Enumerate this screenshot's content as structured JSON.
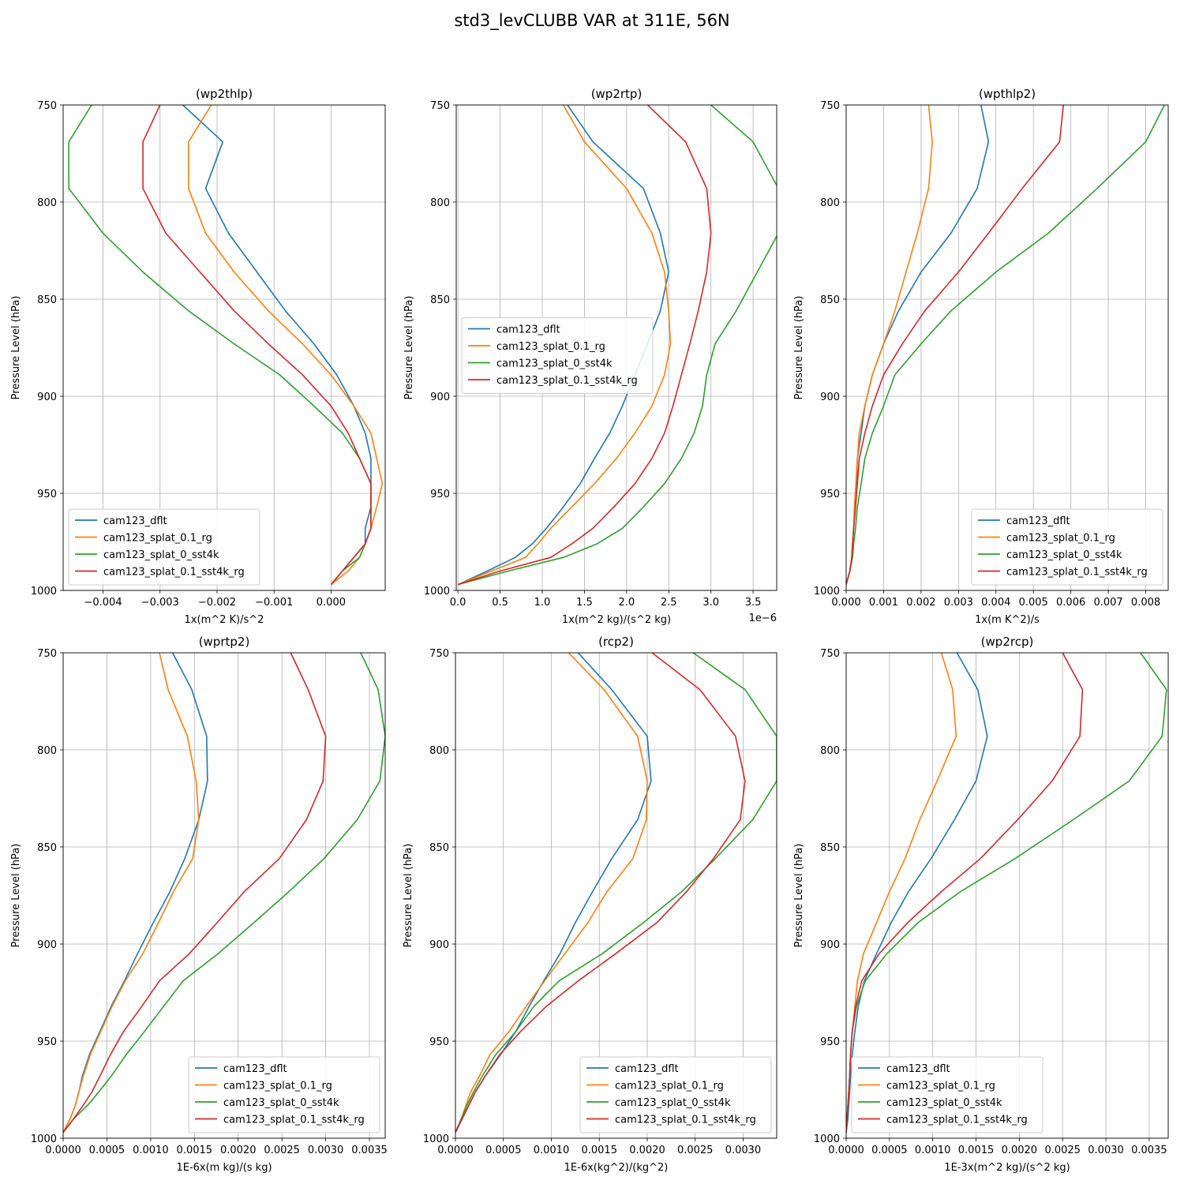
{
  "figure_title": "std3_levCLUBB VAR at 311E, 56N",
  "colors": {
    "cam123_dflt": "#1f77b4",
    "cam123_splat_0.1_rg": "#ff7f0e",
    "cam123_splat_0_sst4k": "#2ca02c",
    "cam123_splat_0.1_sst4k_rg": "#d62728",
    "grid": "#b0b0b0"
  },
  "chart_data": [
    {
      "type": "line",
      "title": "(wp2thlp)",
      "xlabel": "1x(m^2 K)/s^2",
      "ylabel": "Pressure Level (hPa)",
      "xlim": [
        -0.0047,
        0.00095
      ],
      "ylim": [
        1000,
        750
      ],
      "grid": true,
      "legend": "lower-left",
      "xticks": [
        -0.004,
        -0.003,
        -0.002,
        -0.001,
        0.0
      ],
      "xtick_labels": [
        "−0.004",
        "−0.003",
        "−0.002",
        "−0.001",
        "0.000"
      ],
      "yticks": [
        750,
        800,
        850,
        900,
        950,
        1000
      ],
      "ytick_labels": [
        "750",
        "800",
        "850",
        "900",
        "950",
        "1000"
      ],
      "levels": [
        750,
        769,
        793,
        816,
        836,
        856,
        873,
        889,
        905,
        919,
        932,
        945,
        957,
        968,
        976,
        983,
        990,
        997
      ],
      "series": [
        {
          "name": "cam123_dflt",
          "values": [
            -0.0026,
            -0.0019,
            -0.0022,
            -0.0018,
            -0.0013,
            -0.0008,
            -0.0003,
            0.0001,
            0.0004,
            0.0006,
            0.0007,
            0.0007,
            0.0007,
            0.0006,
            0.0006,
            0.0004,
            0.0002,
            0.0
          ]
        },
        {
          "name": "cam123_splat_0.1_rg",
          "values": [
            -0.0021,
            -0.0025,
            -0.0025,
            -0.0022,
            -0.0017,
            -0.0011,
            -0.0005,
            0.0,
            0.0004,
            0.0007,
            0.0008,
            0.0009,
            0.0008,
            0.0007,
            0.0006,
            0.0005,
            0.0003,
            0.0
          ]
        },
        {
          "name": "cam123_splat_0_sst4k",
          "values": [
            -0.0042,
            -0.0046,
            -0.0046,
            -0.004,
            -0.0033,
            -0.0025,
            -0.0017,
            -0.0009,
            -0.0003,
            0.0002,
            0.0005,
            0.0007,
            0.0007,
            0.0007,
            0.0006,
            0.0005,
            0.0002,
            0.0
          ]
        },
        {
          "name": "cam123_splat_0.1_sst4k_rg",
          "values": [
            -0.003,
            -0.0033,
            -0.0033,
            -0.0029,
            -0.0023,
            -0.0017,
            -0.0011,
            -0.0005,
            0.0,
            0.0003,
            0.0005,
            0.0007,
            0.0007,
            0.0007,
            0.0006,
            0.0004,
            0.0002,
            0.0
          ]
        }
      ]
    },
    {
      "type": "line",
      "title": "(wp2rtp)",
      "xlabel": "1x(m^2 kg)/(s^2 kg)",
      "ylabel": "Pressure Level (hPa)",
      "offset_text": "1e−6",
      "xlim": [
        -0.02,
        3.78
      ],
      "ylim": [
        1000,
        750
      ],
      "grid": true,
      "legend": "center-left",
      "xticks": [
        0.0,
        0.5,
        1.0,
        1.5,
        2.0,
        2.5,
        3.0,
        3.5
      ],
      "xtick_labels": [
        "0.0",
        "0.5",
        "1.0",
        "1.5",
        "2.0",
        "2.5",
        "3.0",
        "3.5"
      ],
      "yticks": [
        750,
        800,
        850,
        900,
        950,
        1000
      ],
      "ytick_labels": [
        "750",
        "800",
        "850",
        "900",
        "950",
        "1000"
      ],
      "levels": [
        750,
        769,
        793,
        816,
        836,
        856,
        873,
        889,
        905,
        919,
        932,
        945,
        957,
        968,
        976,
        983,
        990,
        997
      ],
      "series": [
        {
          "name": "cam123_dflt",
          "values": [
            1.3,
            1.6,
            2.2,
            2.4,
            2.5,
            2.4,
            2.25,
            2.1,
            1.95,
            1.8,
            1.62,
            1.45,
            1.25,
            1.05,
            0.88,
            0.68,
            0.35,
            0.0
          ]
        },
        {
          "name": "cam123_splat_0.1_rg",
          "values": [
            1.25,
            1.5,
            2.0,
            2.3,
            2.45,
            2.5,
            2.52,
            2.45,
            2.3,
            2.1,
            1.88,
            1.62,
            1.35,
            1.1,
            0.95,
            0.8,
            0.4,
            0.0
          ]
        },
        {
          "name": "cam123_splat_0_sst4k",
          "values": [
            3.0,
            3.5,
            3.8,
            3.8,
            3.55,
            3.3,
            3.05,
            2.95,
            2.9,
            2.8,
            2.65,
            2.45,
            2.2,
            1.95,
            1.65,
            1.25,
            0.6,
            0.0
          ]
        },
        {
          "name": "cam123_splat_0.1_sst4k_rg",
          "values": [
            2.25,
            2.7,
            2.95,
            3.0,
            2.95,
            2.85,
            2.75,
            2.65,
            2.55,
            2.45,
            2.3,
            2.1,
            1.85,
            1.6,
            1.35,
            1.1,
            0.5,
            0.0
          ]
        }
      ]
    },
    {
      "type": "line",
      "title": "(wpthlp2)",
      "xlabel": "1x(m K^2)/s",
      "ylabel": "Pressure Level (hPa)",
      "xlim": [
        0.0,
        0.0086
      ],
      "ylim": [
        1000,
        750
      ],
      "grid": true,
      "legend": "lower-right",
      "xticks": [
        0.0,
        0.001,
        0.002,
        0.003,
        0.004,
        0.005,
        0.006,
        0.007,
        0.008
      ],
      "xtick_labels": [
        "0.000",
        "0.001",
        "0.002",
        "0.003",
        "0.004",
        "0.005",
        "0.006",
        "0.007",
        "0.008"
      ],
      "yticks": [
        750,
        800,
        850,
        900,
        950,
        1000
      ],
      "ytick_labels": [
        "750",
        "800",
        "850",
        "900",
        "950",
        "1000"
      ],
      "levels": [
        750,
        769,
        793,
        816,
        836,
        856,
        873,
        889,
        905,
        919,
        932,
        945,
        957,
        968,
        976,
        983,
        990,
        997
      ],
      "series": [
        {
          "name": "cam123_dflt",
          "values": [
            0.0036,
            0.0038,
            0.0035,
            0.0028,
            0.002,
            0.0014,
            0.001,
            0.0007,
            0.0005,
            0.0004,
            0.0003,
            0.00028,
            0.00024,
            0.0002,
            0.00017,
            0.00015,
            0.0001,
            0.0
          ]
        },
        {
          "name": "cam123_splat_0.1_rg",
          "values": [
            0.0022,
            0.0023,
            0.0022,
            0.0019,
            0.0016,
            0.0013,
            0.001,
            0.0007,
            0.0005,
            0.00035,
            0.0003,
            0.00026,
            0.00022,
            0.0002,
            0.00017,
            0.00015,
            0.0001,
            0.0
          ]
        },
        {
          "name": "cam123_splat_0_sst4k",
          "values": [
            0.0085,
            0.008,
            0.0067,
            0.0054,
            0.004,
            0.0028,
            0.002,
            0.0013,
            0.001,
            0.0007,
            0.0005,
            0.0004,
            0.0003,
            0.00025,
            0.0002,
            0.00017,
            0.0001,
            0.0
          ]
        },
        {
          "name": "cam123_splat_0.1_sst4k_rg",
          "values": [
            0.0058,
            0.0057,
            0.0047,
            0.0038,
            0.003,
            0.0021,
            0.0015,
            0.001,
            0.0007,
            0.0005,
            0.00035,
            0.0003,
            0.00025,
            0.0002,
            0.00017,
            0.00015,
            0.0001,
            0.0
          ]
        }
      ]
    },
    {
      "type": "line",
      "title": "(wprtp2)",
      "xlabel": "1E-6x(m kg)/(s kg)",
      "ylabel": "Pressure Level (hPa)",
      "xlim": [
        0.0,
        0.00368
      ],
      "ylim": [
        1000,
        750
      ],
      "grid": true,
      "legend": "lower-right",
      "xticks": [
        0.0,
        0.0005,
        0.001,
        0.0015,
        0.002,
        0.0025,
        0.003,
        0.0035
      ],
      "xtick_labels": [
        "0.0000",
        "0.0005",
        "0.0010",
        "0.0015",
        "0.0020",
        "0.0025",
        "0.0030",
        "0.0035"
      ],
      "yticks": [
        750,
        800,
        850,
        900,
        950,
        1000
      ],
      "ytick_labels": [
        "750",
        "800",
        "850",
        "900",
        "950",
        "1000"
      ],
      "levels": [
        750,
        769,
        793,
        816,
        836,
        856,
        873,
        889,
        905,
        919,
        932,
        945,
        957,
        968,
        976,
        983,
        990,
        997
      ],
      "series": [
        {
          "name": "cam123_dflt",
          "values": [
            0.00125,
            0.00147,
            0.00164,
            0.00165,
            0.00155,
            0.00139,
            0.00122,
            0.00103,
            0.00085,
            0.0007,
            0.00055,
            0.00042,
            0.0003,
            0.00022,
            0.00018,
            0.00014,
            8e-05,
            0.0
          ]
        },
        {
          "name": "cam123_splat_0.1_rg",
          "values": [
            0.0011,
            0.0012,
            0.00142,
            0.00152,
            0.00155,
            0.00148,
            0.00126,
            0.00109,
            0.00091,
            0.00071,
            0.00056,
            0.00043,
            0.00031,
            0.00023,
            0.00018,
            0.00014,
            8e-05,
            0.0
          ]
        },
        {
          "name": "cam123_splat_0_sst4k",
          "values": [
            0.0034,
            0.0036,
            0.00368,
            0.00362,
            0.00336,
            0.00298,
            0.00258,
            0.00218,
            0.00177,
            0.00137,
            0.00115,
            0.00093,
            0.00072,
            0.00055,
            0.00041,
            0.00028,
            0.00012,
            0.0
          ]
        },
        {
          "name": "cam123_splat_0.1_sst4k_rg",
          "values": [
            0.0026,
            0.0028,
            0.003,
            0.00297,
            0.00278,
            0.00247,
            0.00207,
            0.00176,
            0.00144,
            0.0011,
            0.0009,
            0.00069,
            0.00054,
            0.00042,
            0.00033,
            0.00023,
            0.00012,
            0.0
          ]
        }
      ]
    },
    {
      "type": "line",
      "title": "(rcp2)",
      "xlabel": "1E-6x(kg^2)/(kg^2)",
      "ylabel": "Pressure Level (hPa)",
      "xlim": [
        0.0,
        0.00335
      ],
      "ylim": [
        1000,
        750
      ],
      "grid": true,
      "legend": "lower-right",
      "xticks": [
        0.0,
        0.0005,
        0.001,
        0.0015,
        0.002,
        0.0025,
        0.003
      ],
      "xtick_labels": [
        "0.0000",
        "0.0005",
        "0.0010",
        "0.0015",
        "0.0020",
        "0.0025",
        "0.0030"
      ],
      "yticks": [
        750,
        800,
        850,
        900,
        950,
        1000
      ],
      "ytick_labels": [
        "750",
        "800",
        "850",
        "900",
        "950",
        "1000"
      ],
      "levels": [
        750,
        769,
        793,
        816,
        836,
        856,
        873,
        889,
        905,
        919,
        932,
        945,
        957,
        968,
        976,
        983,
        990,
        997
      ],
      "series": [
        {
          "name": "cam123_dflt",
          "values": [
            0.00128,
            0.00163,
            0.002,
            0.00204,
            0.0019,
            0.00163,
            0.00143,
            0.00125,
            0.00109,
            0.00092,
            0.00077,
            0.00063,
            0.00047,
            0.00031,
            0.00021,
            0.00014,
            7e-05,
            0.0
          ]
        },
        {
          "name": "cam123_splat_0.1_rg",
          "values": [
            0.00118,
            0.00155,
            0.0019,
            0.002,
            0.00199,
            0.00185,
            0.00158,
            0.00138,
            0.00114,
            0.00093,
            0.00074,
            0.00056,
            0.00036,
            0.00025,
            0.00016,
            0.00011,
            6e-05,
            0.0
          ]
        },
        {
          "name": "cam123_splat_0_sst4k",
          "values": [
            0.00248,
            0.00302,
            0.00335,
            0.00335,
            0.0031,
            0.00271,
            0.00236,
            0.00196,
            0.00153,
            0.00108,
            0.00082,
            0.00063,
            0.00042,
            0.00028,
            0.00019,
            0.00012,
            6e-05,
            0.0
          ]
        },
        {
          "name": "cam123_splat_0.1_sst4k_rg",
          "values": [
            0.00205,
            0.00255,
            0.00292,
            0.00302,
            0.00297,
            0.00269,
            0.00241,
            0.0021,
            0.00167,
            0.00128,
            0.00095,
            0.00068,
            0.00046,
            0.00031,
            0.00021,
            0.00014,
            7e-05,
            0.0
          ]
        }
      ]
    },
    {
      "type": "line",
      "title": "(wp2rcp)",
      "xlabel": "1E-3x(m^2 kg)/(s^2 kg)",
      "ylabel": "Pressure Level (hPa)",
      "xlim": [
        0.0,
        0.00372
      ],
      "ylim": [
        1000,
        750
      ],
      "grid": true,
      "legend": "lower-left",
      "xticks": [
        0.0,
        0.0005,
        0.001,
        0.0015,
        0.002,
        0.0025,
        0.003,
        0.0035
      ],
      "xtick_labels": [
        "0.0000",
        "0.0005",
        "0.0010",
        "0.0015",
        "0.0020",
        "0.0025",
        "0.0030",
        "0.0035"
      ],
      "yticks": [
        750,
        800,
        850,
        900,
        950,
        1000
      ],
      "ytick_labels": [
        "750",
        "800",
        "850",
        "900",
        "950",
        "1000"
      ],
      "levels": [
        750,
        769,
        793,
        816,
        836,
        856,
        873,
        889,
        905,
        919,
        932,
        945,
        957,
        968,
        976,
        983,
        990,
        997
      ],
      "series": [
        {
          "name": "cam123_dflt",
          "values": [
            0.00128,
            0.00152,
            0.00163,
            0.0015,
            0.00125,
            0.00098,
            0.00072,
            0.00052,
            0.00035,
            0.00021,
            0.00014,
            0.0001,
            7e-05,
            5e-05,
            4e-05,
            3e-05,
            2e-05,
            0.0
          ]
        },
        {
          "name": "cam123_splat_0.1_rg",
          "values": [
            0.0011,
            0.00123,
            0.00127,
            0.00105,
            0.00085,
            0.00068,
            0.0005,
            0.00035,
            0.0002,
            0.00013,
            0.0001,
            7e-05,
            5e-05,
            4e-05,
            3e-05,
            2e-05,
            1e-05,
            0.0
          ]
        },
        {
          "name": "cam123_splat_0_sst4k",
          "values": [
            0.0034,
            0.0037,
            0.00365,
            0.00327,
            0.00262,
            0.00195,
            0.00132,
            0.00083,
            0.00047,
            0.00022,
            0.00012,
            7e-05,
            5e-05,
            4e-05,
            3e-05,
            2e-05,
            1e-05,
            0.0
          ]
        },
        {
          "name": "cam123_splat_0.1_sst4k_rg",
          "values": [
            0.0025,
            0.00273,
            0.0027,
            0.00238,
            0.00198,
            0.00155,
            0.0011,
            0.00071,
            0.00038,
            0.00018,
            0.00011,
            7e-05,
            5e-05,
            4e-05,
            3e-05,
            2e-05,
            1e-05,
            0.0
          ]
        }
      ]
    }
  ]
}
